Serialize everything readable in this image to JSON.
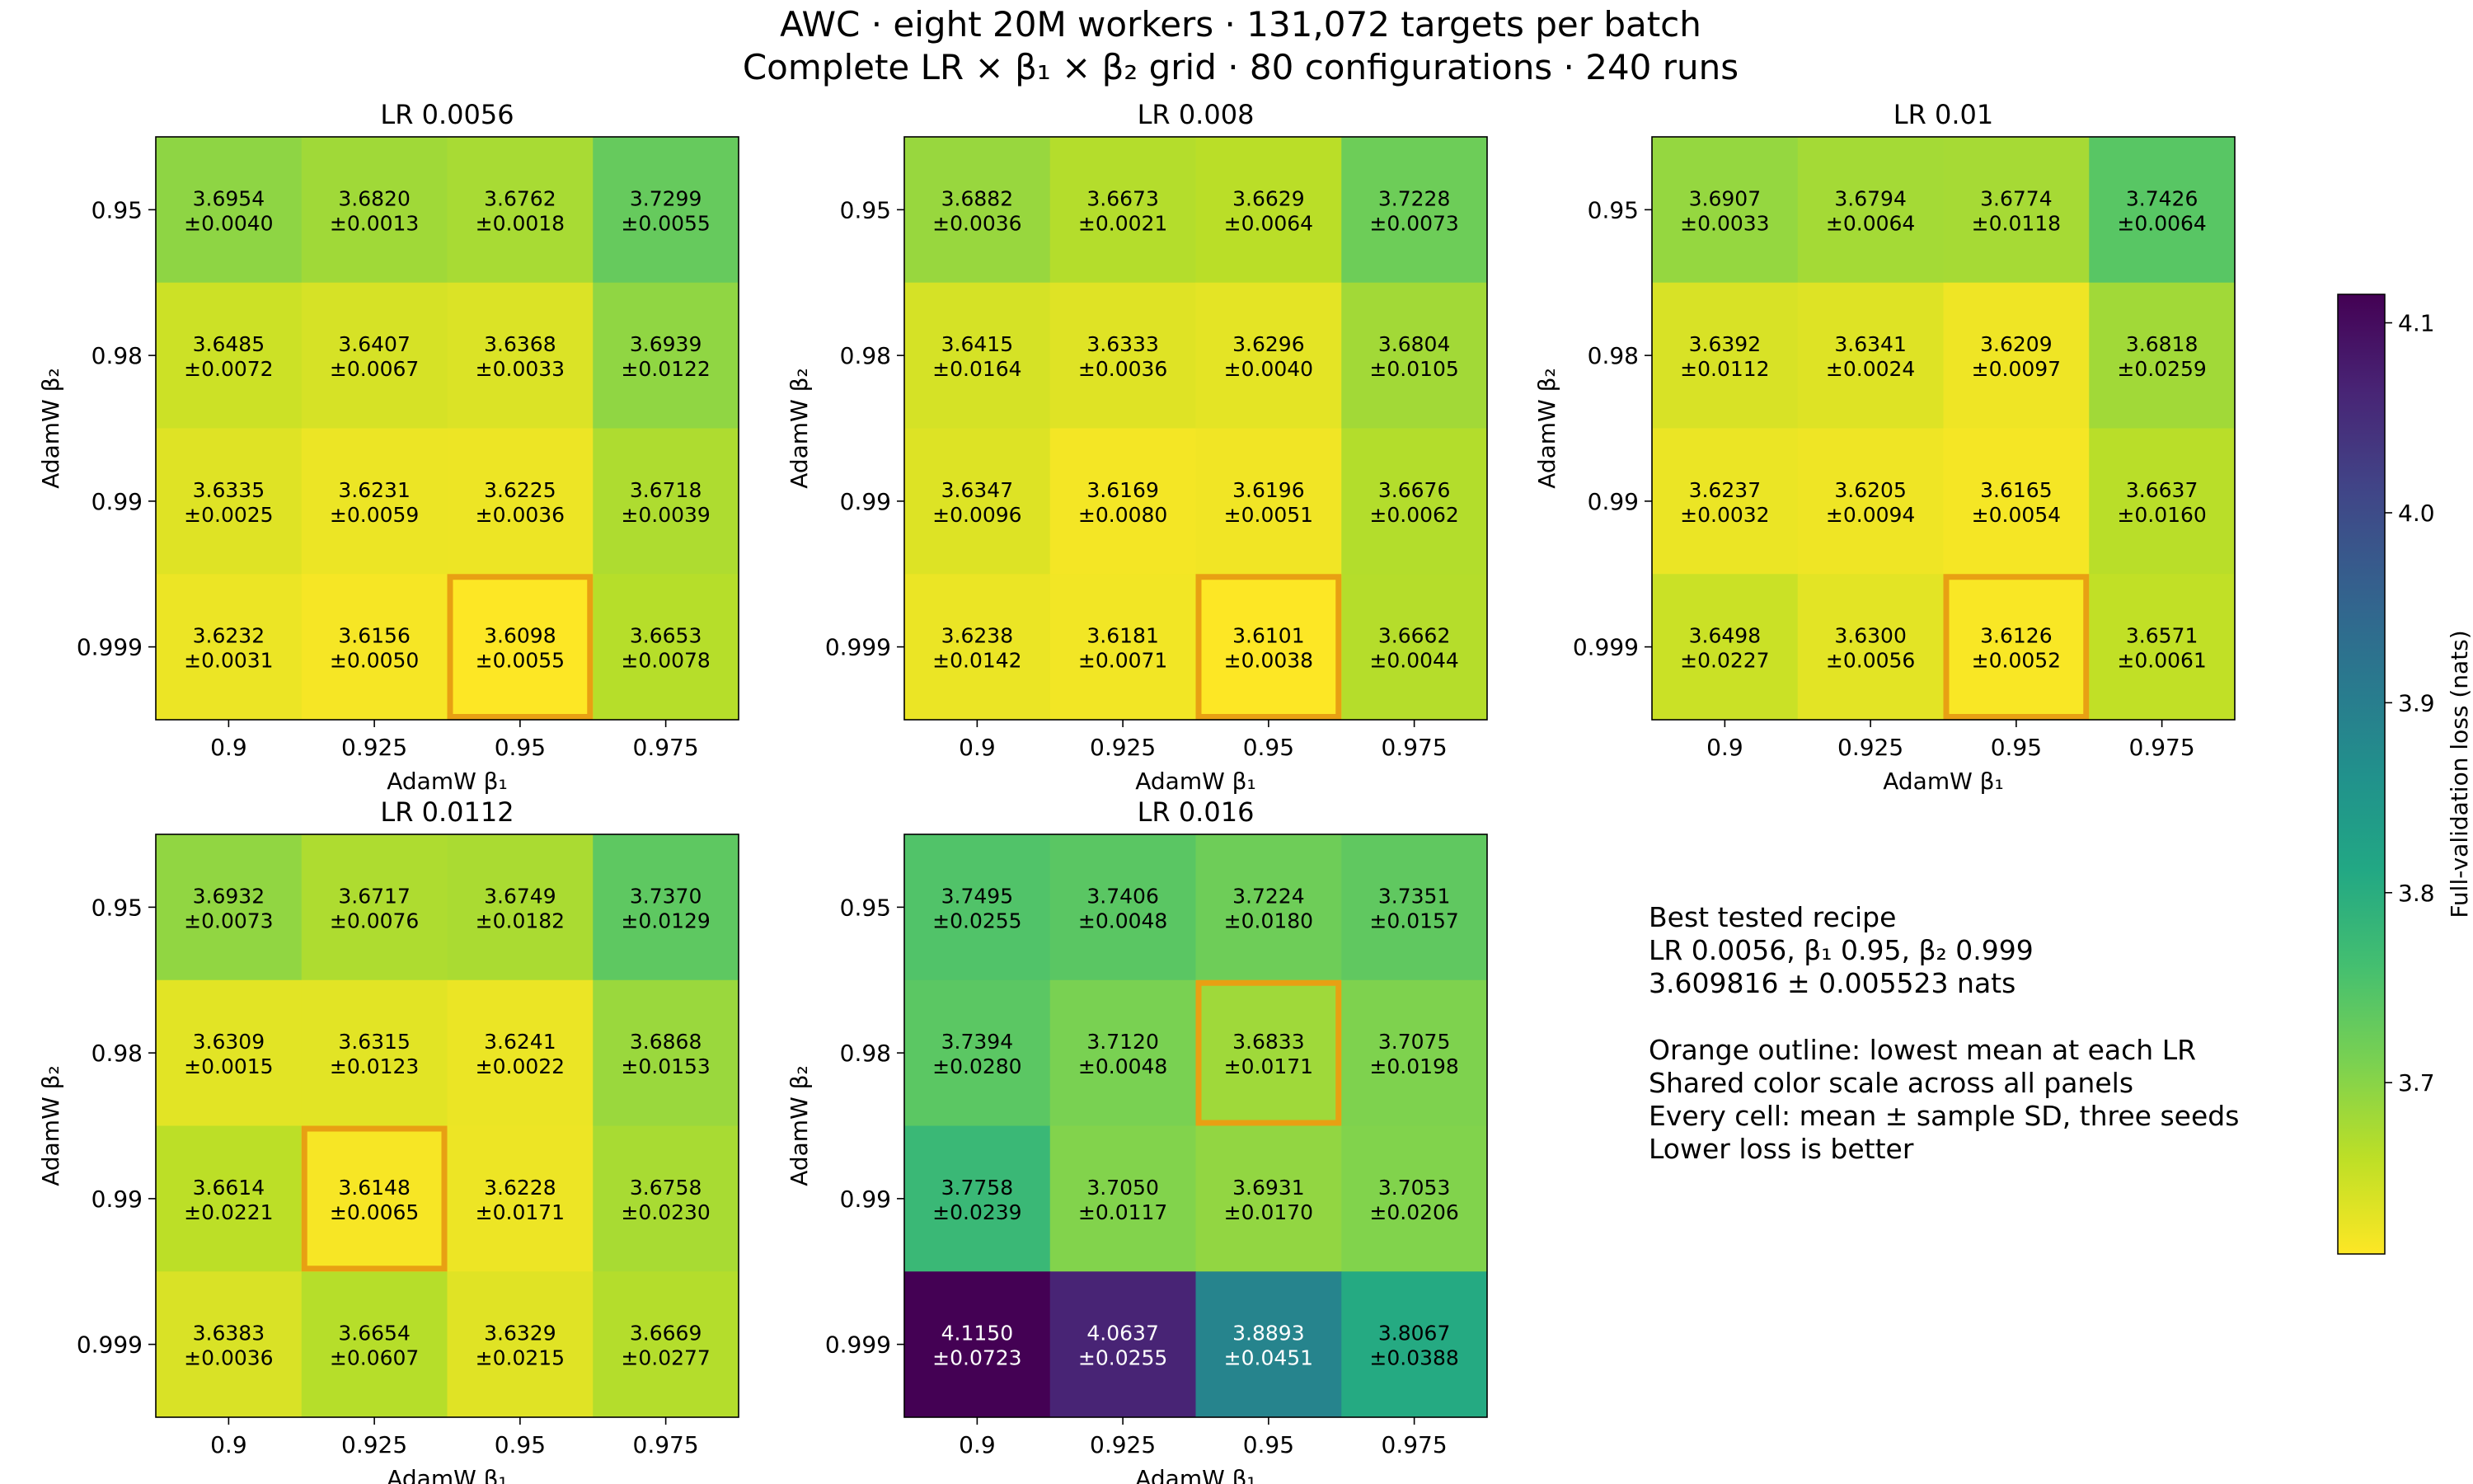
{
  "chart_data": {
    "type": "heatmap",
    "title_line1": "AWC · eight 20M workers · 131,072 targets per batch",
    "title_line2": "Complete LR × β₁ × β₂ grid · 80 configurations · 240 runs",
    "xlabel": "AdamW β₁",
    "ylabel": "AdamW β₂",
    "x_ticks": [
      "0.9",
      "0.925",
      "0.95",
      "0.975"
    ],
    "y_ticks": [
      "0.95",
      "0.98",
      "0.99",
      "0.999"
    ],
    "colorbar": {
      "label": "Full-validation loss (nats)",
      "colormap": "viridis",
      "reversed": true,
      "range": [
        3.6098,
        4.115
      ],
      "ticks": [
        "3.7",
        "3.8",
        "3.9",
        "4.0",
        "4.1"
      ]
    },
    "highlight_color": "#e8a013",
    "panels": [
      {
        "title": "LR 0.0056",
        "best": [
          3,
          2
        ],
        "mean": [
          [
            "3.6954",
            "3.6820",
            "3.6762",
            "3.7299"
          ],
          [
            "3.6485",
            "3.6407",
            "3.6368",
            "3.6939"
          ],
          [
            "3.6335",
            "3.6231",
            "3.6225",
            "3.6718"
          ],
          [
            "3.6232",
            "3.6156",
            "3.6098",
            "3.6653"
          ]
        ],
        "sd": [
          [
            "±0.0040",
            "±0.0013",
            "±0.0018",
            "±0.0055"
          ],
          [
            "±0.0072",
            "±0.0067",
            "±0.0033",
            "±0.0122"
          ],
          [
            "±0.0025",
            "±0.0059",
            "±0.0036",
            "±0.0039"
          ],
          [
            "±0.0031",
            "±0.0050",
            "±0.0055",
            "±0.0078"
          ]
        ]
      },
      {
        "title": "LR 0.008",
        "best": [
          3,
          2
        ],
        "mean": [
          [
            "3.6882",
            "3.6673",
            "3.6629",
            "3.7228"
          ],
          [
            "3.6415",
            "3.6333",
            "3.6296",
            "3.6804"
          ],
          [
            "3.6347",
            "3.6169",
            "3.6196",
            "3.6676"
          ],
          [
            "3.6238",
            "3.6181",
            "3.6101",
            "3.6662"
          ]
        ],
        "sd": [
          [
            "±0.0036",
            "±0.0021",
            "±0.0064",
            "±0.0073"
          ],
          [
            "±0.0164",
            "±0.0036",
            "±0.0040",
            "±0.0105"
          ],
          [
            "±0.0096",
            "±0.0080",
            "±0.0051",
            "±0.0062"
          ],
          [
            "±0.0142",
            "±0.0071",
            "±0.0038",
            "±0.0044"
          ]
        ]
      },
      {
        "title": "LR 0.01",
        "best": [
          3,
          2
        ],
        "mean": [
          [
            "3.6907",
            "3.6794",
            "3.6774",
            "3.7426"
          ],
          [
            "3.6392",
            "3.6341",
            "3.6209",
            "3.6818"
          ],
          [
            "3.6237",
            "3.6205",
            "3.6165",
            "3.6637"
          ],
          [
            "3.6498",
            "3.6300",
            "3.6126",
            "3.6571"
          ]
        ],
        "sd": [
          [
            "±0.0033",
            "±0.0064",
            "±0.0118",
            "±0.0064"
          ],
          [
            "±0.0112",
            "±0.0024",
            "±0.0097",
            "±0.0259"
          ],
          [
            "±0.0032",
            "±0.0094",
            "±0.0054",
            "±0.0160"
          ],
          [
            "±0.0227",
            "±0.0056",
            "±0.0052",
            "±0.0061"
          ]
        ]
      },
      {
        "title": "LR 0.0112",
        "best": [
          2,
          1
        ],
        "mean": [
          [
            "3.6932",
            "3.6717",
            "3.6749",
            "3.7370"
          ],
          [
            "3.6309",
            "3.6315",
            "3.6241",
            "3.6868"
          ],
          [
            "3.6614",
            "3.6148",
            "3.6228",
            "3.6758"
          ],
          [
            "3.6383",
            "3.6654",
            "3.6329",
            "3.6669"
          ]
        ],
        "sd": [
          [
            "±0.0073",
            "±0.0076",
            "±0.0182",
            "±0.0129"
          ],
          [
            "±0.0015",
            "±0.0123",
            "±0.0022",
            "±0.0153"
          ],
          [
            "±0.0221",
            "±0.0065",
            "±0.0171",
            "±0.0230"
          ],
          [
            "±0.0036",
            "±0.0607",
            "±0.0215",
            "±0.0277"
          ]
        ]
      },
      {
        "title": "LR 0.016",
        "best": [
          1,
          2
        ],
        "mean": [
          [
            "3.7495",
            "3.7406",
            "3.7224",
            "3.7351"
          ],
          [
            "3.7394",
            "3.7120",
            "3.6833",
            "3.7075"
          ],
          [
            "3.7758",
            "3.7050",
            "3.6931",
            "3.7053"
          ],
          [
            "4.1150",
            "4.0637",
            "3.8893",
            "3.8067"
          ]
        ],
        "sd": [
          [
            "±0.0255",
            "±0.0048",
            "±0.0180",
            "±0.0157"
          ],
          [
            "±0.0280",
            "±0.0048",
            "±0.0171",
            "±0.0198"
          ],
          [
            "±0.0239",
            "±0.0117",
            "±0.0170",
            "±0.0206"
          ],
          [
            "±0.0723",
            "±0.0255",
            "±0.0451",
            "±0.0388"
          ]
        ]
      }
    ],
    "annotation": {
      "heading": "Best tested recipe",
      "recipe": "LR 0.0056, β₁ 0.95, β₂ 0.999",
      "value": "3.609816 ± 0.005523 nats",
      "notes": [
        "Orange outline: lowest mean at each LR",
        "Shared color scale across all panels",
        "Every cell: mean ± sample SD, three seeds",
        "Lower loss is better"
      ]
    }
  }
}
